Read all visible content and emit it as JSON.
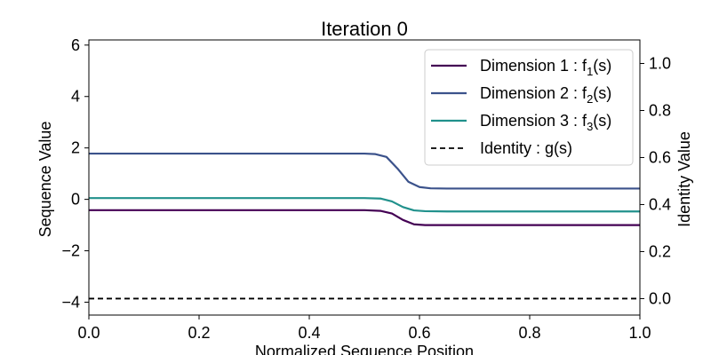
{
  "chart_data": {
    "type": "line",
    "title": "Iteration 0",
    "xlabel": "Normalized Sequence Position",
    "ylabel": "Sequence Value",
    "y2label": "Identity Value",
    "xlim": [
      0.0,
      1.0
    ],
    "ylim": [
      -4.5,
      6.2
    ],
    "y2lim": [
      -0.07,
      1.1
    ],
    "xticks": [
      "0.0",
      "0.2",
      "0.4",
      "0.6",
      "0.8",
      "1.0"
    ],
    "yticks": [
      "−4",
      "−2",
      "0",
      "2",
      "4",
      "6"
    ],
    "y2ticks": [
      "0.0",
      "0.2",
      "0.4",
      "0.6",
      "0.8",
      "1.0"
    ],
    "grid": false,
    "legend_position": "top-right",
    "series": [
      {
        "name": "Dimension 1 : f1(s)",
        "label_main": "Dimension 1 : f",
        "label_sub": "1",
        "label_tail": "(s)",
        "axis": "left",
        "color": "#440154",
        "style": "solid",
        "x": [
          0.0,
          0.5,
          0.53,
          0.55,
          0.57,
          0.59,
          0.61,
          0.65,
          1.0
        ],
        "y": [
          -0.42,
          -0.42,
          -0.45,
          -0.55,
          -0.8,
          -0.97,
          -1.0,
          -1.0,
          -1.0
        ]
      },
      {
        "name": "Dimension 2 : f2(s)",
        "label_main": "Dimension 2 : f",
        "label_sub": "2",
        "label_tail": "(s)",
        "axis": "left",
        "color": "#3b528b",
        "style": "solid",
        "x": [
          0.0,
          0.5,
          0.52,
          0.54,
          0.56,
          0.58,
          0.6,
          0.62,
          0.65,
          1.0
        ],
        "y": [
          1.78,
          1.78,
          1.76,
          1.65,
          1.2,
          0.68,
          0.48,
          0.43,
          0.42,
          0.42
        ]
      },
      {
        "name": "Dimension 3 : f3(s)",
        "label_main": "Dimension 3 : f",
        "label_sub": "3",
        "label_tail": "(s)",
        "axis": "left",
        "color": "#21918c",
        "style": "solid",
        "x": [
          0.0,
          0.5,
          0.53,
          0.55,
          0.57,
          0.59,
          0.61,
          0.65,
          1.0
        ],
        "y": [
          0.05,
          0.05,
          0.03,
          -0.08,
          -0.3,
          -0.43,
          -0.46,
          -0.47,
          -0.47
        ]
      },
      {
        "name": "Identity : g(s)",
        "label_main": "Identity : g(s)",
        "label_sub": "",
        "label_tail": "",
        "axis": "right",
        "color": "#000000",
        "style": "dashed",
        "x": [
          0.0,
          1.0
        ],
        "y": [
          0.0,
          0.0
        ]
      }
    ]
  }
}
